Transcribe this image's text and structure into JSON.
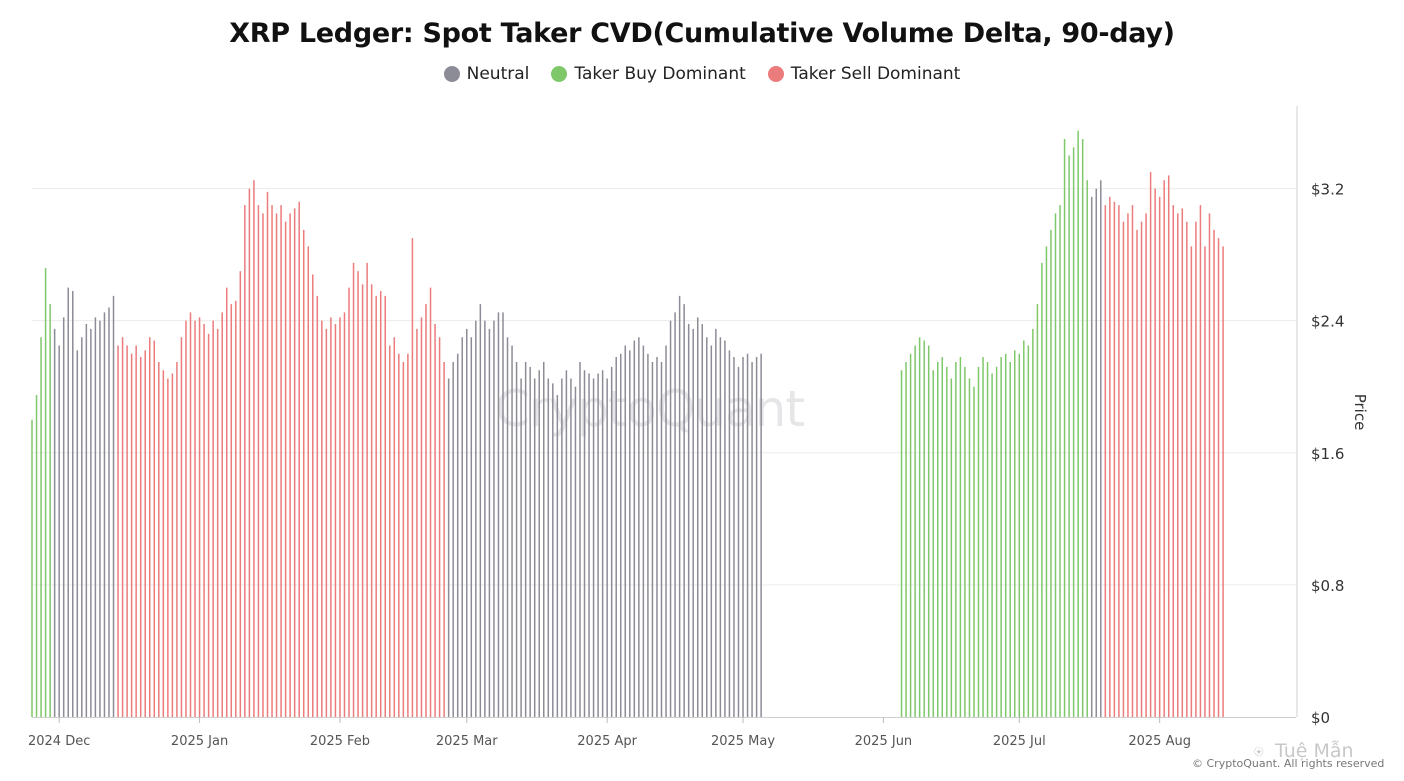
{
  "chart_data": {
    "type": "bar",
    "title": "XRP Ledger: Spot Taker CVD(Cumulative Volume Delta, 90-day)",
    "legend": [
      {
        "name": "Neutral",
        "color": "#8c8c96"
      },
      {
        "name": "Taker Buy Dominant",
        "color": "#7ec86a"
      },
      {
        "name": "Taker Sell Dominant",
        "color": "#ec7b7b"
      }
    ],
    "legend_position": "top-center",
    "ylabel": "Price",
    "ylim": [
      0,
      3.7
    ],
    "y_axis_side": "right",
    "y_ticks": [
      0,
      0.8,
      1.6,
      2.4,
      3.2
    ],
    "y_tick_labels": [
      "$0",
      "$0.8",
      "$1.6",
      "$2.4",
      "$3.2"
    ],
    "x_tick_labels": [
      "2024 Dec",
      "2025 Jan",
      "2025 Feb",
      "2025 Mar",
      "2025 Apr",
      "2025 May",
      "2025 Jun",
      "2025 Jul",
      "2025 Aug"
    ],
    "x_tick_dates": [
      "2024-12-01",
      "2025-01-01",
      "2025-02-01",
      "2025-03-01",
      "2025-04-01",
      "2025-05-01",
      "2025-06-01",
      "2025-07-01",
      "2025-08-01"
    ],
    "x_start_date": "2024-11-25",
    "grid": "horizontal",
    "series": [
      {
        "name": "Taker Buy Dominant",
        "start": "2024-11-25",
        "values": [
          1.8,
          1.95,
          2.3,
          2.72,
          2.5
        ]
      },
      {
        "name": "Neutral",
        "start": "2024-11-30",
        "values": [
          2.35,
          2.25,
          2.42,
          2.6,
          2.58,
          2.22,
          2.3,
          2.38,
          2.35,
          2.42,
          2.4,
          2.45,
          2.48,
          2.55
        ]
      },
      {
        "name": "Taker Sell Dominant",
        "start": "2024-12-14",
        "values": [
          2.25,
          2.3,
          2.25,
          2.2,
          2.25,
          2.18,
          2.22,
          2.3,
          2.28,
          2.15,
          2.1,
          2.05,
          2.08,
          2.15,
          2.3,
          2.4,
          2.45,
          2.4,
          2.42,
          2.38,
          2.32,
          2.4,
          2.35,
          2.45,
          2.6,
          2.5,
          2.52,
          2.7,
          3.1,
          3.2,
          3.25,
          3.1,
          3.05,
          3.18,
          3.1,
          3.05,
          3.1,
          3.0,
          3.05,
          3.08,
          3.12,
          2.95,
          2.85,
          2.68,
          2.55,
          2.4,
          2.35,
          2.42,
          2.38,
          2.42,
          2.45,
          2.6,
          2.75,
          2.7,
          2.62,
          2.75,
          2.62,
          2.55,
          2.58,
          2.55,
          2.25,
          2.3,
          2.2,
          2.15,
          2.2,
          2.9,
          2.35,
          2.42,
          2.5,
          2.6,
          2.38,
          2.3,
          2.15
        ]
      },
      {
        "name": "Neutral",
        "start": "2025-02-25",
        "values": [
          2.05,
          2.15,
          2.2,
          2.3,
          2.35,
          2.3,
          2.4,
          2.5,
          2.4,
          2.35,
          2.4,
          2.45,
          2.45,
          2.3,
          2.25,
          2.15,
          2.05,
          2.15,
          2.12,
          2.05,
          2.1,
          2.15,
          2.05,
          2.02,
          1.95,
          2.05,
          2.1,
          2.05,
          2.0,
          2.15,
          2.1,
          2.08,
          2.05,
          2.08,
          2.1,
          2.05,
          2.12,
          2.18,
          2.2,
          2.25,
          2.22,
          2.28,
          2.3,
          2.25,
          2.2,
          2.15,
          2.18,
          2.15,
          2.25,
          2.4,
          2.45,
          2.55,
          2.5,
          2.38,
          2.35,
          2.42,
          2.38,
          2.3,
          2.25,
          2.35,
          2.3,
          2.28,
          2.22,
          2.18,
          2.12,
          2.18,
          2.2,
          2.15,
          2.18,
          2.2
        ]
      },
      {
        "name": "Taker Buy Dominant",
        "start": "2025-06-05",
        "values": [
          2.1,
          2.15,
          2.2,
          2.25,
          2.3,
          2.28,
          2.25,
          2.1,
          2.15,
          2.18,
          2.12,
          2.05,
          2.15,
          2.18,
          2.12,
          2.05,
          2.0,
          2.12,
          2.18,
          2.15,
          2.08,
          2.12,
          2.18,
          2.2,
          2.15,
          2.22,
          2.2,
          2.28,
          2.25,
          2.35,
          2.5,
          2.75,
          2.85,
          2.95,
          3.05,
          3.1,
          3.5,
          3.4,
          3.45,
          3.55,
          3.5,
          3.25
        ]
      },
      {
        "name": "Neutral",
        "start": "2025-07-17",
        "values": [
          3.15,
          3.2,
          3.25
        ]
      },
      {
        "name": "Taker Sell Dominant",
        "start": "2025-07-20",
        "values": [
          3.1,
          3.15,
          3.12,
          3.1,
          3.0,
          3.05,
          3.1,
          2.95,
          3.0,
          3.05,
          3.3,
          3.2,
          3.15,
          3.25,
          3.28,
          3.1,
          3.05,
          3.08,
          3.0,
          2.85,
          3.0,
          3.1,
          2.85,
          3.05,
          2.95,
          2.9,
          2.85
        ]
      }
    ]
  },
  "watermark": "CryptoQuant",
  "copyright": "© CryptoQuant. All rights reserved",
  "credit": "Tuệ Mẫn",
  "colors": {
    "neutral": "#8c8c96",
    "buy": "#7ec86a",
    "sell": "#ec7b7b"
  }
}
